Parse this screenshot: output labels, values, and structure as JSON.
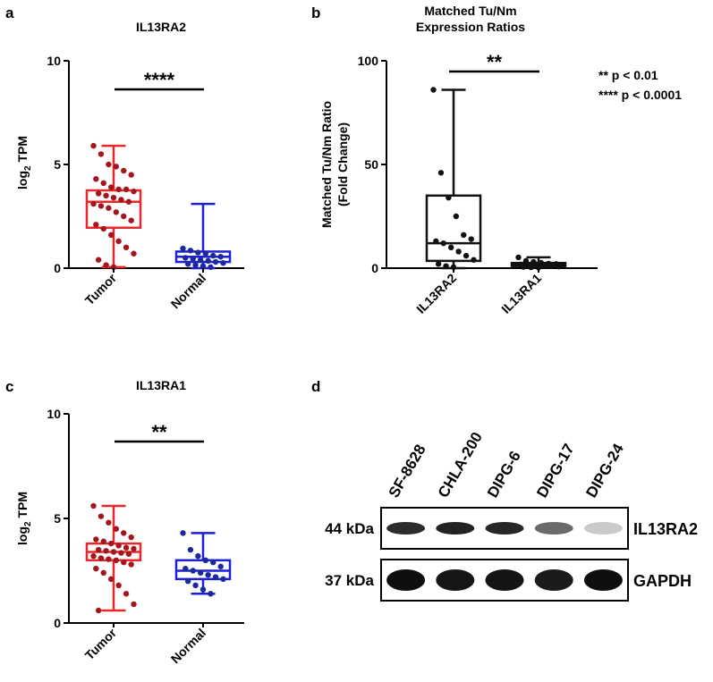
{
  "panels": {
    "a": {
      "letter": "a",
      "chart_data": {
        "type": "box",
        "title": "IL13RA2",
        "ylabel_main": "log",
        "ylabel_sub": "2",
        "ylabel_tail": " TPM",
        "ylim": [
          0,
          10
        ],
        "yticks": [
          "0",
          "5",
          "10"
        ],
        "yticks_values": [
          0,
          5,
          10
        ],
        "categories": [
          "Tumor",
          "Normal"
        ],
        "significance": "****",
        "series": [
          {
            "category": "Tumor",
            "color": "#e8272a",
            "point_color": "#a4161d",
            "stats": {
              "min": 0.05,
              "q1": 1.95,
              "median": 3.2,
              "q3": 3.75,
              "max": 5.9
            },
            "points": [
              5.9,
              5.5,
              5.0,
              4.9,
              4.7,
              4.5,
              4.3,
              4.1,
              3.9,
              3.8,
              3.8,
              3.7,
              3.6,
              3.5,
              3.4,
              3.3,
              3.2,
              3.1,
              3.0,
              2.9,
              2.7,
              2.5,
              2.3,
              2.1,
              1.9,
              1.6,
              1.3,
              1.0,
              0.7,
              0.4,
              0.15,
              0.05
            ]
          },
          {
            "category": "Normal",
            "color": "#1f1fd6",
            "point_color": "#1a2a9e",
            "stats": {
              "min": 0.0,
              "q1": 0.3,
              "median": 0.55,
              "q3": 0.8,
              "max": 3.1
            },
            "points": [
              0.95,
              0.85,
              0.75,
              0.7,
              0.6,
              0.55,
              0.5,
              0.45,
              0.4,
              0.35,
              0.3,
              0.25,
              0.2,
              0.15,
              0.1,
              0.05
            ]
          }
        ]
      }
    },
    "b": {
      "letter": "b",
      "chart_data": {
        "type": "box",
        "title_line1": "Matched Tu/Nm",
        "title_line2": "Expression Ratios",
        "ylabel_line1": "Matched Tu/Nm Ratio",
        "ylabel_line2": "(Fold Change)",
        "ylim": [
          0,
          100
        ],
        "yticks": [
          "0",
          "50",
          "100"
        ],
        "yticks_values": [
          0,
          50,
          100
        ],
        "categories": [
          "IL13RA2",
          "IL13RA1"
        ],
        "significance": "**",
        "series": [
          {
            "category": "IL13RA2",
            "color": "#111111",
            "point_color": "#111111",
            "stats": {
              "min": 0.0,
              "q1": 3.5,
              "median": 12,
              "q3": 35,
              "max": 86
            },
            "points": [
              86,
              46,
              34,
              25,
              16,
              14,
              13,
              12,
              10,
              8,
              6,
              4,
              2,
              1,
              0.5
            ]
          },
          {
            "category": "IL13RA1",
            "color": "#111111",
            "point_color": "#111111",
            "stats": {
              "min": 0.3,
              "q1": 1.0,
              "median": 1.8,
              "q3": 2.5,
              "max": 5.2
            },
            "points": [
              5.2,
              3.5,
              3.0,
              2.6,
              2.2,
              2.0,
              1.8,
              1.6,
              1.4,
              1.2,
              1.0,
              0.8,
              0.6,
              0.4,
              0.3
            ]
          }
        ]
      },
      "legend": [
        "** p < 0.01",
        "**** p < 0.0001"
      ]
    },
    "c": {
      "letter": "c",
      "chart_data": {
        "type": "box",
        "title": "IL13RA1",
        "ylabel_main": "log",
        "ylabel_sub": "2",
        "ylabel_tail": " TPM",
        "ylim": [
          0,
          10
        ],
        "yticks": [
          "0",
          "5",
          "10"
        ],
        "yticks_values": [
          0,
          5,
          10
        ],
        "categories": [
          "Tumor",
          "Normal"
        ],
        "significance": "**",
        "series": [
          {
            "category": "Tumor",
            "color": "#e8272a",
            "point_color": "#a4161d",
            "stats": {
              "min": 0.6,
              "q1": 3.0,
              "median": 3.4,
              "q3": 3.8,
              "max": 5.6
            },
            "points": [
              5.6,
              5.1,
              4.8,
              4.5,
              4.3,
              4.1,
              4.0,
              3.9,
              3.8,
              3.7,
              3.6,
              3.55,
              3.5,
              3.45,
              3.4,
              3.35,
              3.3,
              3.2,
              3.1,
              3.05,
              3.0,
              2.9,
              2.8,
              2.6,
              2.4,
              2.1,
              1.8,
              1.4,
              0.9,
              0.6
            ]
          },
          {
            "category": "Normal",
            "color": "#1f1fd6",
            "point_color": "#1a2a9e",
            "stats": {
              "min": 1.4,
              "q1": 2.1,
              "median": 2.5,
              "q3": 3.0,
              "max": 4.3
            },
            "points": [
              4.3,
              3.5,
              3.2,
              3.0,
              2.9,
              2.7,
              2.6,
              2.5,
              2.4,
              2.3,
              2.2,
              2.1,
              2.0,
              1.8,
              1.6,
              1.4
            ]
          }
        ]
      }
    },
    "d": {
      "letter": "d",
      "lanes": [
        "SF-8628",
        "CHLA-200",
        "DIPG-6",
        "DIPG-17",
        "DIPG-24"
      ],
      "rows": [
        {
          "mw": "44 kDa",
          "label": "IL13RA2",
          "intensity": [
            0.88,
            0.92,
            0.9,
            0.62,
            0.22
          ]
        },
        {
          "mw": "37 kDa",
          "label": "GAPDH",
          "intensity": [
            1.0,
            0.97,
            0.98,
            0.95,
            1.0
          ]
        }
      ]
    }
  }
}
